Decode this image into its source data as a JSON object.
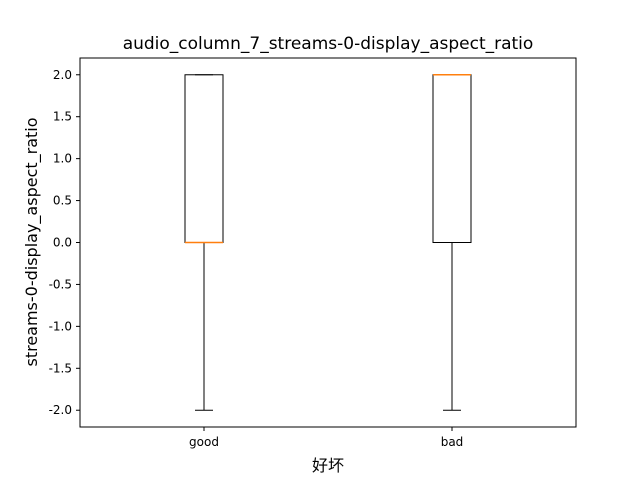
{
  "chart_data": {
    "type": "box",
    "title": "audio_column_7_streams-0-display_aspect_ratio",
    "xlabel": "好坏",
    "ylabel": "streams-0-display_aspect_ratio",
    "ylim": [
      -2.2,
      2.2
    ],
    "yticks": [
      "2.0",
      "1.5",
      "1.0",
      "0.5",
      "0.0",
      "-0.5",
      "-1.0",
      "-1.5",
      "-2.0"
    ],
    "ytick_values": [
      2.0,
      1.5,
      1.0,
      0.5,
      0.0,
      -0.5,
      -1.0,
      -1.5,
      -2.0
    ],
    "categories": [
      "good",
      "bad"
    ],
    "boxes": [
      {
        "category": "good",
        "whisker_low": -2.0,
        "q1": 0.0,
        "median": 0.0,
        "q3": 2.0,
        "whisker_high": 2.0
      },
      {
        "category": "bad",
        "whisker_low": -2.0,
        "q1": 0.0,
        "median": 2.0,
        "q3": 2.0,
        "whisker_high": 2.0
      }
    ],
    "colors": {
      "box": "#000000",
      "median": "#ff7f0e"
    },
    "grid": false
  }
}
